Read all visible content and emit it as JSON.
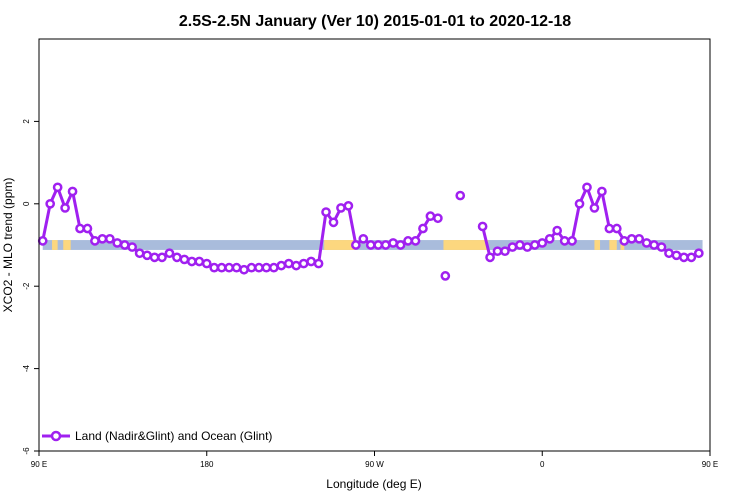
{
  "chart_data": {
    "type": "line",
    "title": "2.5S-2.5N January (Ver 10)   2015-01-01 to 2020-12-18",
    "xlabel": "Longitude (deg E)",
    "ylabel": "XCO2 - MLO trend (ppm)",
    "xlim": [
      90,
      450
    ],
    "ylim": [
      -6,
      4
    ],
    "x_ticks": [
      {
        "value": 90,
        "label": "90 E"
      },
      {
        "value": 180,
        "label": "180"
      },
      {
        "value": 270,
        "label": "90 W"
      },
      {
        "value": 360,
        "label": "0"
      },
      {
        "value": 450,
        "label": "90 E"
      },
      {
        "value": 540,
        "label": "180"
      }
    ],
    "y_ticks": [
      {
        "value": -6,
        "label": "-6"
      },
      {
        "value": -4,
        "label": "-4"
      },
      {
        "value": -2,
        "label": "-2"
      },
      {
        "value": 0,
        "label": "0"
      },
      {
        "value": 2,
        "label": "2"
      }
    ],
    "grid": false,
    "legend_position": "bottom-left",
    "series": [
      {
        "name": "Land (Nadir&Glint) and Ocean (Glint)",
        "color": "#a020f0",
        "points": [
          [
            92,
            -0.9
          ],
          [
            96,
            0.0
          ],
          [
            100,
            0.4
          ],
          [
            104,
            -0.1
          ],
          [
            108,
            0.3
          ],
          [
            112,
            -0.6
          ],
          [
            116,
            -0.6
          ],
          [
            120,
            -0.9
          ],
          [
            124,
            -0.85
          ],
          [
            128,
            -0.85
          ],
          [
            132,
            -0.95
          ],
          [
            136,
            -1.0
          ],
          [
            140,
            -1.05
          ],
          [
            144,
            -1.2
          ],
          [
            148,
            -1.25
          ],
          [
            152,
            -1.3
          ],
          [
            156,
            -1.3
          ],
          [
            160,
            -1.2
          ],
          [
            164,
            -1.3
          ],
          [
            168,
            -1.35
          ],
          [
            172,
            -1.4
          ],
          [
            176,
            -1.4
          ],
          [
            180,
            -1.45
          ],
          [
            184,
            -1.55
          ],
          [
            188,
            -1.55
          ],
          [
            192,
            -1.55
          ],
          [
            196,
            -1.55
          ],
          [
            200,
            -1.6
          ],
          [
            204,
            -1.55
          ],
          [
            208,
            -1.55
          ],
          [
            212,
            -1.55
          ],
          [
            216,
            -1.55
          ],
          [
            220,
            -1.5
          ],
          [
            224,
            -1.45
          ],
          [
            228,
            -1.5
          ],
          [
            232,
            -1.45
          ],
          [
            236,
            -1.4
          ],
          [
            240,
            -1.45
          ],
          [
            244,
            -0.2
          ],
          [
            248,
            -0.45
          ],
          [
            252,
            -0.1
          ],
          [
            256,
            -0.05
          ],
          [
            260,
            -1.0
          ],
          [
            264,
            -0.85
          ],
          [
            268,
            -1.0
          ],
          [
            272,
            -1.0
          ],
          [
            276,
            -1.0
          ],
          [
            280,
            -0.95
          ],
          [
            284,
            -1.0
          ],
          [
            288,
            -0.9
          ],
          [
            292,
            -0.9
          ],
          [
            296,
            -0.6
          ],
          [
            300,
            -0.3
          ],
          [
            304,
            -0.35
          ],
          [
            328,
            -0.55
          ],
          [
            332,
            -1.3
          ],
          [
            336,
            -1.15
          ],
          [
            340,
            -1.15
          ],
          [
            344,
            -1.05
          ],
          [
            348,
            -1.0
          ],
          [
            352,
            -1.05
          ],
          [
            356,
            -1.0
          ],
          [
            360,
            -0.95
          ],
          [
            364,
            -0.85
          ],
          [
            368,
            -0.65
          ],
          [
            372,
            -0.9
          ],
          [
            376,
            -0.9
          ],
          [
            380,
            0.0
          ],
          [
            384,
            0.4
          ],
          [
            388,
            -0.1
          ],
          [
            392,
            0.3
          ],
          [
            396,
            -0.6
          ],
          [
            400,
            -0.6
          ],
          [
            404,
            -0.9
          ],
          [
            408,
            -0.85
          ],
          [
            412,
            -0.85
          ],
          [
            416,
            -0.95
          ],
          [
            420,
            -1.0
          ],
          [
            424,
            -1.05
          ],
          [
            428,
            -1.2
          ],
          [
            432,
            -1.25
          ],
          [
            436,
            -1.3
          ],
          [
            440,
            -1.3
          ],
          [
            444,
            -1.2
          ]
        ],
        "isolated_points": [
          [
            308,
            -1.75
          ],
          [
            316,
            0.2
          ]
        ]
      }
    ],
    "surface_band": {
      "y_range": [
        -1.12,
        -0.88
      ],
      "ocean_color": "#a9bcdc",
      "land_color": "#fcd77f",
      "land_segments": [
        [
          97,
          100
        ],
        [
          103,
          107
        ],
        [
          243,
          260
        ],
        [
          307,
          331
        ],
        [
          388,
          391
        ],
        [
          396,
          400
        ],
        [
          402,
          404
        ]
      ]
    },
    "legend": {
      "label": "Land (Nadir&Glint) and Ocean (Glint)"
    }
  }
}
